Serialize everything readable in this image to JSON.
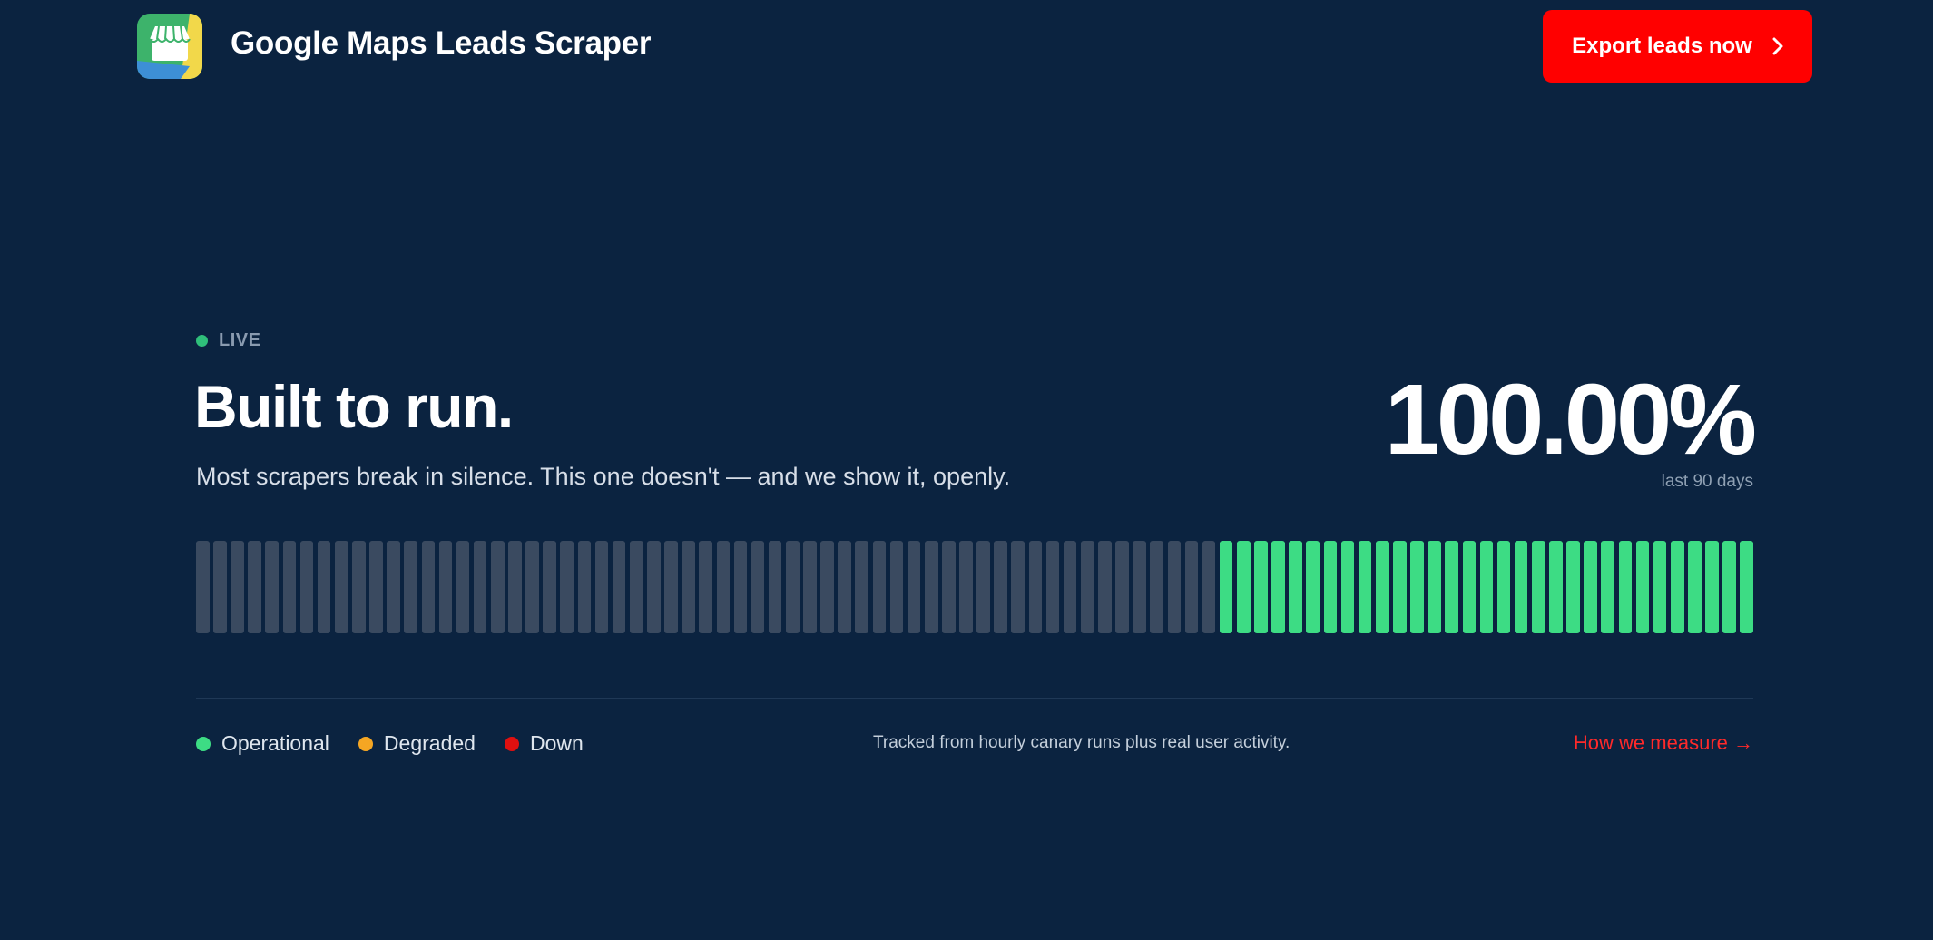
{
  "header": {
    "brand": "Google Maps Leads Scraper",
    "cta_label": "Export leads now"
  },
  "status": {
    "live_label": "LIVE",
    "headline": "Built to run.",
    "subhead": "Most scrapers break in silence. This one doesn't — and we show it, openly.",
    "uptime": "100.00%",
    "window": "last 90 days"
  },
  "history": {
    "days": 90,
    "days_without_data": 59,
    "days_operational": 31
  },
  "legend": [
    {
      "label": "Operational",
      "color": "#3ddc84"
    },
    {
      "label": "Degraded",
      "color": "#f5a623"
    },
    {
      "label": "Down",
      "color": "#e01010"
    }
  ],
  "footer": {
    "tracked_note": "Tracked from hourly canary runs plus real user activity.",
    "measure_link": "How we measure →"
  },
  "colors": {
    "background": "#0b2340",
    "accent": "#ff0000",
    "no_data_bar": "#3a4a60",
    "operational_bar": "#3ddc84"
  }
}
